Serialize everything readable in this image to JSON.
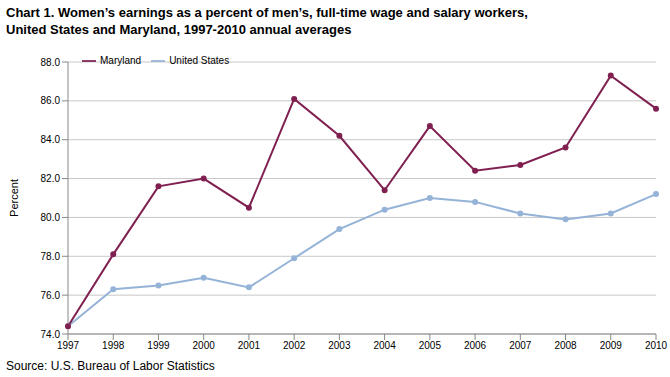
{
  "chart_data": {
    "type": "line",
    "title": "Chart 1. Women’s earnings as a percent of men’s, full-time wage and salary workers,\nUnited States and Maryland, 1997-2010 annual averages",
    "y_label": "Percent",
    "source": "Source: U.S. Bureau of Labor Statistics",
    "categories": [
      "1997",
      "1998",
      "1999",
      "2000",
      "2001",
      "2002",
      "2003",
      "2004",
      "2005",
      "2006",
      "2007",
      "2008",
      "2009",
      "2010"
    ],
    "series": [
      {
        "name": "United States",
        "color": "#95b3d7",
        "marker": "circle",
        "values": [
          74.4,
          76.3,
          76.5,
          76.9,
          76.4,
          77.9,
          79.4,
          80.4,
          81.0,
          80.8,
          80.2,
          79.9,
          80.2,
          81.2
        ]
      },
      {
        "name": "Maryland",
        "color": "#7f2050",
        "marker": "circle",
        "values": [
          74.4,
          78.1,
          81.6,
          82.0,
          80.5,
          86.1,
          84.2,
          81.4,
          84.7,
          82.4,
          82.7,
          83.6,
          87.3,
          85.6
        ]
      }
    ],
    "ylim": [
      74,
      88
    ],
    "yticks": [
      {
        "value": 74,
        "label": "74.0"
      },
      {
        "value": 76,
        "label": "76.0"
      },
      {
        "value": 78,
        "label": "78.0"
      },
      {
        "value": 80,
        "label": "80.0"
      },
      {
        "value": 82,
        "label": "82.0"
      },
      {
        "value": 84,
        "label": "84.0"
      },
      {
        "value": 86,
        "label": "86.0"
      },
      {
        "value": 88,
        "label": "88.0"
      }
    ],
    "grid": true,
    "legend": "top-left"
  }
}
